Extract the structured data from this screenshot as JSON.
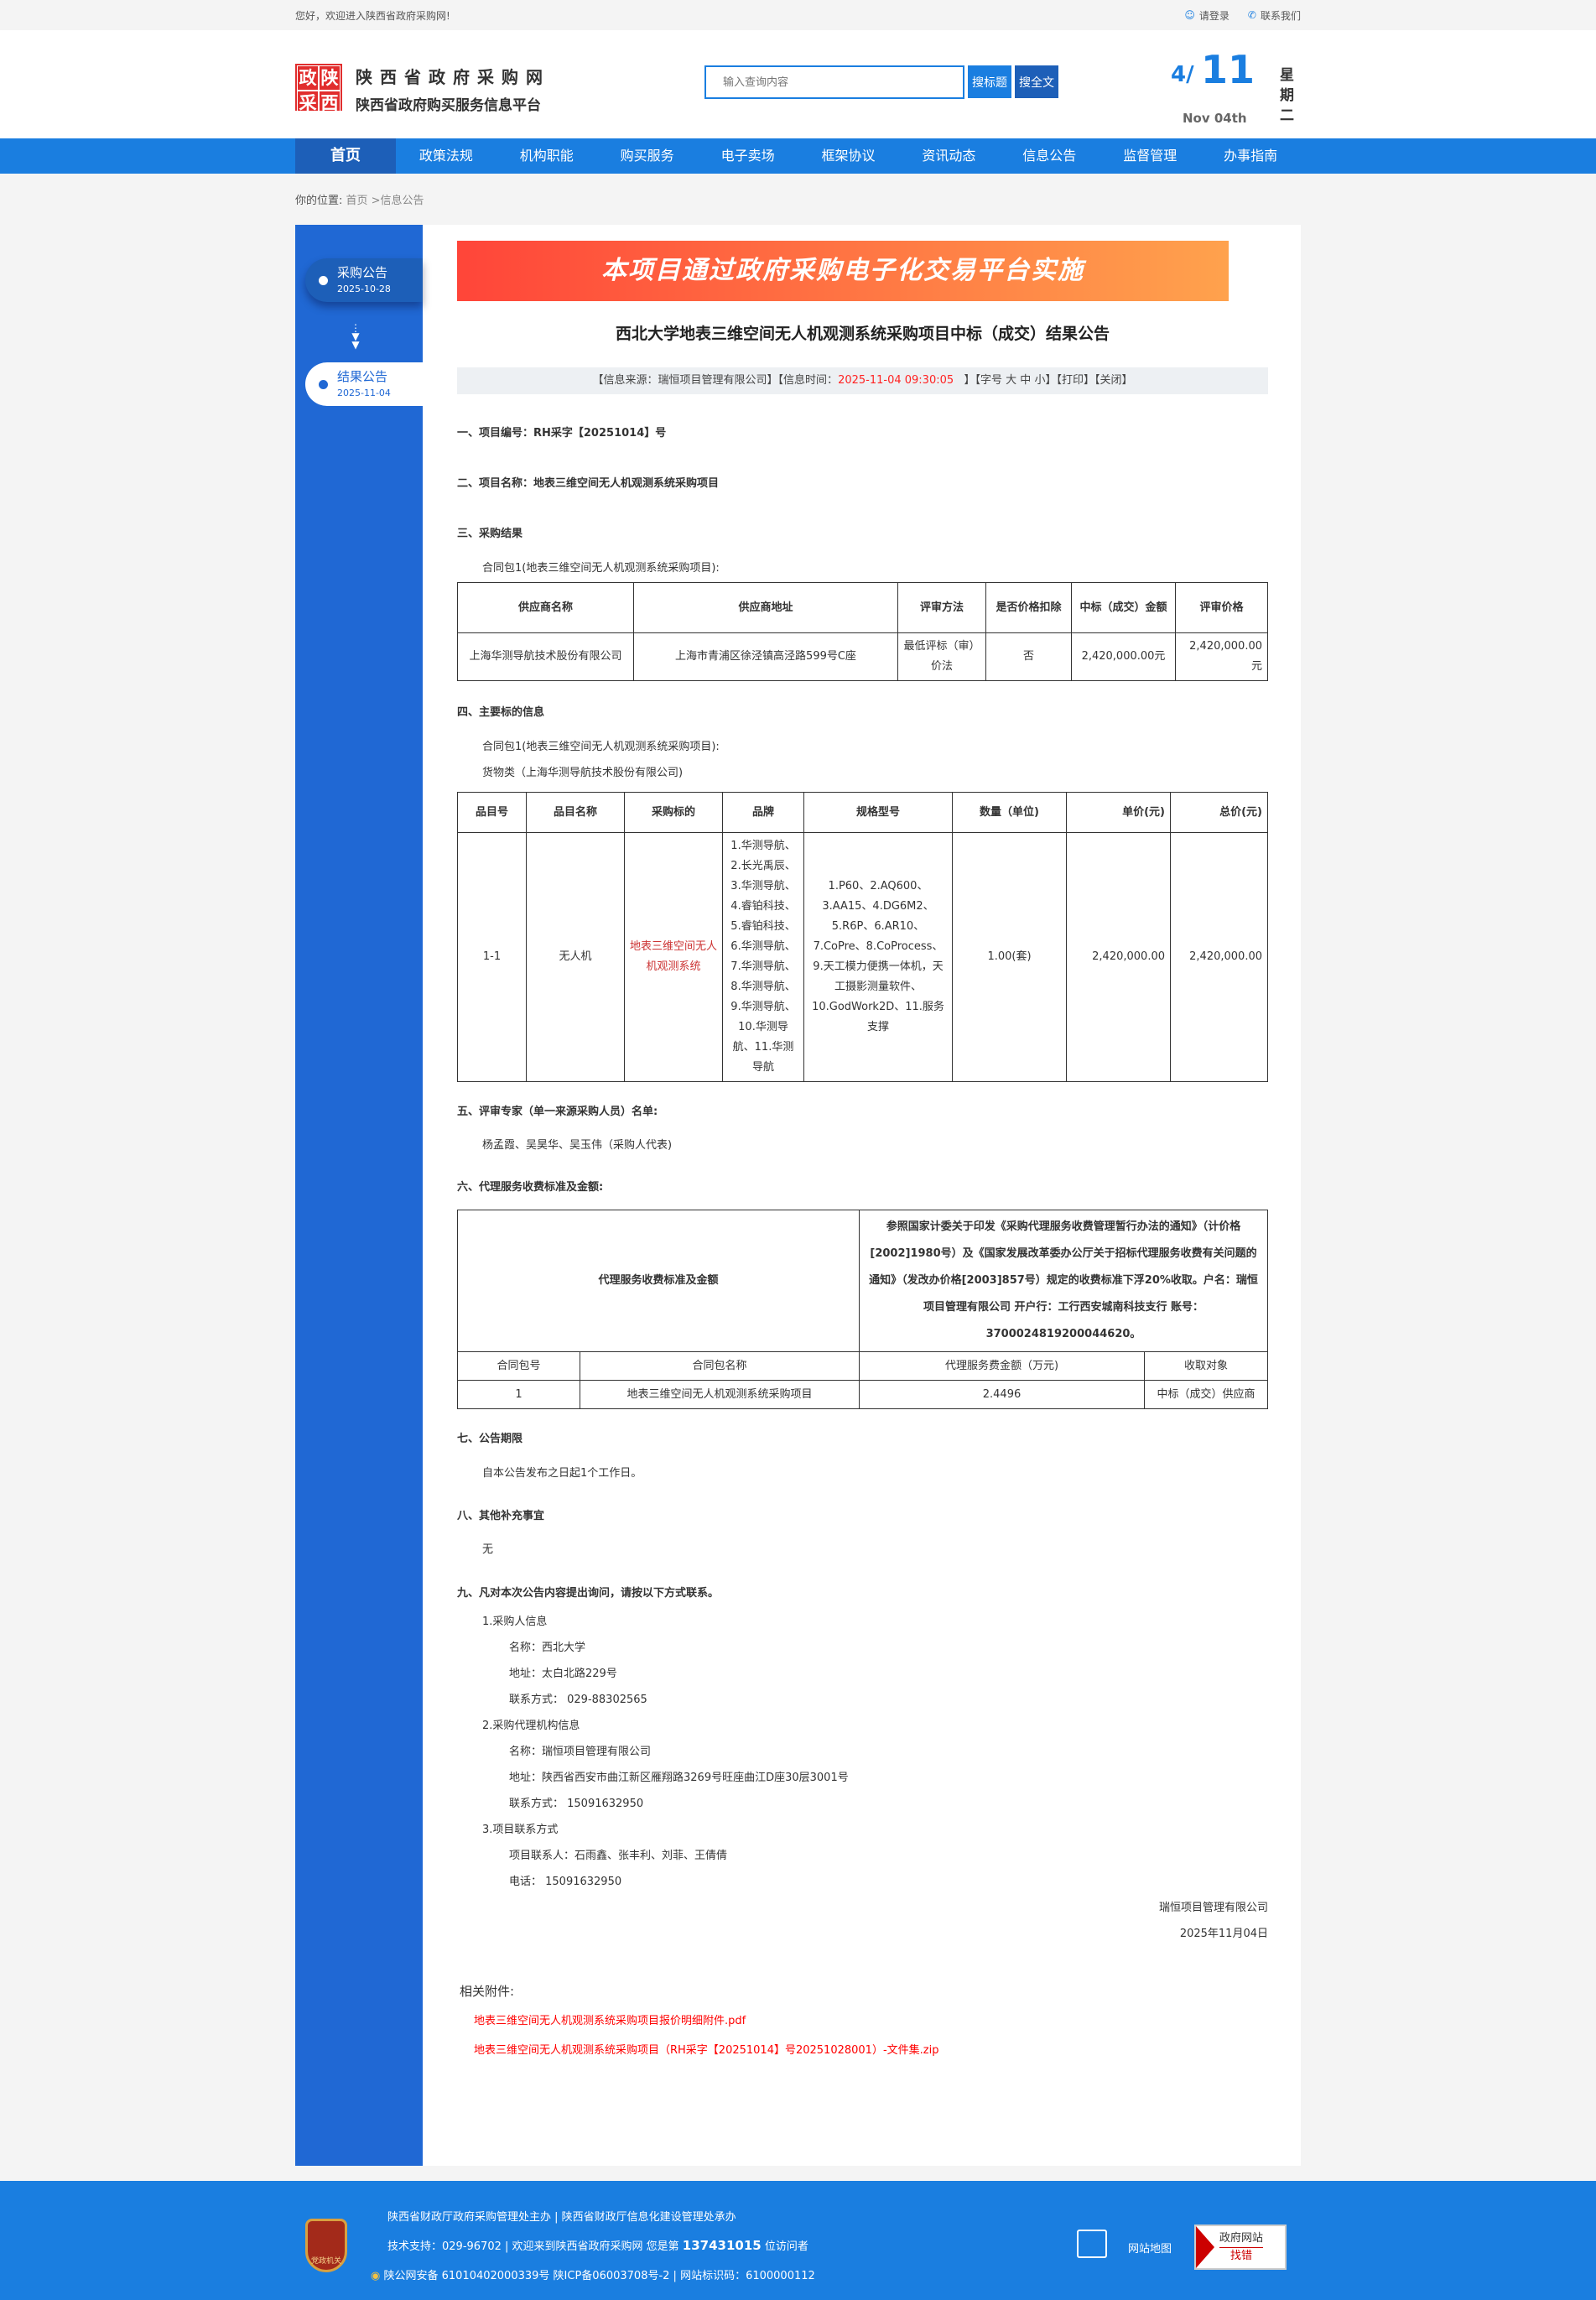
{
  "topbar": {
    "welcome": "您好，欢迎进入陕西省政府采购网!",
    "login": "请登录",
    "contact": "联系我们"
  },
  "header": {
    "logo_chars": [
      "政",
      "陕",
      "采",
      "西"
    ],
    "site_name": "陕西省政府采购网",
    "site_subtitle": "陕西省政府购买服务信息平台",
    "search": {
      "placeholder": "输入查询内容",
      "btn_title": "搜标题",
      "btn_full": "搜全文"
    },
    "date": {
      "month": "4/",
      "day": "11",
      "en": "Nov 04th",
      "weekday": "星期二"
    }
  },
  "nav": {
    "items": [
      "首页",
      "政策法规",
      "机构职能",
      "购买服务",
      "电子卖场",
      "框架协议",
      "资讯动态",
      "信息公告",
      "监督管理",
      "办事指南"
    ],
    "active": 0
  },
  "breadcrumb": {
    "label": "你的位置:",
    "path": "首页 >信息公告"
  },
  "sidebar": {
    "items": [
      {
        "label": "采购公告",
        "date": "2025-10-28"
      },
      {
        "label": "结果公告",
        "date": "2025-11-04"
      }
    ]
  },
  "article": {
    "banner": "本项目通过政府采购电子化交易平台实施",
    "title": "西北大学地表三维空间无人机观测系统采购项目中标（成交）结果公告",
    "info": {
      "source": "【信息来源：瑞恒项目管理有限公司】【信息时间：",
      "time": "2025-11-04 09:30:05",
      "rest": "】【字号 大 中 小】【打印】【关闭】"
    },
    "s1": "一、项目编号：RH采字【20251014】号",
    "s2": "二、项目名称：地表三维空间无人机观测系统采购项目",
    "s3": "三、采购结果",
    "s3_pkg": "合同包1(地表三维空间无人机观测系统采购项目):",
    "t1": {
      "headers": [
        "供应商名称",
        "供应商地址",
        "评审方法",
        "是否价格扣除",
        "中标（成交）金额",
        "评审价格"
      ],
      "row": [
        "上海华测导航技术股份有限公司",
        "上海市青浦区徐泾镇高泾路599号C座",
        "最低评标（审）价法",
        "否",
        "2,420,000.00元",
        "2,420,000.00元"
      ]
    },
    "s4": "四、主要标的信息",
    "s4_pkg": "合同包1(地表三维空间无人机观测系统采购项目):",
    "s4_type": "货物类（上海华测导航技术股份有限公司)",
    "t2": {
      "headers": [
        "品目号",
        "品目名称",
        "采购标的",
        "品牌",
        "规格型号",
        "数量（单位)",
        "单价(元)",
        "总价(元)"
      ],
      "row": [
        "1-1",
        "无人机",
        "地表三维空间无人机观测系统",
        "1.华测导航、2.长光禹辰、3.华测导航、4.睿铂科技、5.睿铂科技、6.华测导航、7.华测导航、8.华测导航、9.华测导航、10.华测导航、11.华测导航",
        "1.P60、2.AQ600、3.AA15、4.DG6M2、5.R6P、6.AR10、7.CoPre、8.CoProcess、9.天工模力便携一体机，天工摄影测量软件、10.GodWork2D、11.服务支撑",
        "1.00(套)",
        "2,420,000.00",
        "2,420,000.00"
      ]
    },
    "s5": "五、评审专家（单一来源采购人员）名单:",
    "s5_names": "杨孟霞、吴昊华、吴玉伟（采购人代表)",
    "s6": "六、代理服务收费标准及金额:",
    "t3": {
      "label": "代理服务收费标准及金额",
      "desc": "参照国家计委关于印发《采购代理服务收费管理暂行办法的通知》（计价格[2002]1980号）及《国家发展改革委办公厅关于招标代理服务收费有关问题的通知》（发改办价格[2003]857号）规定的收费标准下浮20%收取。户名：瑞恒项目管理有限公司 开户行：工行西安城南科技支行 账号：3700024819200044620。",
      "headers": [
        "合同包号",
        "合同包名称",
        "代理服务费金额（万元)",
        "收取对象"
      ],
      "row": [
        "1",
        "地表三维空间无人机观测系统采购项目",
        "2.4496",
        "中标（成交）供应商"
      ]
    },
    "s7": "七、公告期限",
    "s7_text": "自本公告发布之日起1个工作日。",
    "s8": "八、其他补充事宜",
    "s8_text": "无",
    "s9": "九、凡对本次公告内容提出询问，请按以下方式联系。",
    "c1": {
      "title": "1.采购人信息",
      "name": "名称：西北大学",
      "addr": "地址：太白北路229号",
      "tel": "联系方式： 029-88302565"
    },
    "c2": {
      "title": "2.采购代理机构信息",
      "name": "名称：瑞恒项目管理有限公司",
      "addr": "地址：陕西省西安市曲江新区雁翔路3269号旺座曲江D座30层3001号",
      "tel": "联系方式： 15091632950"
    },
    "c3": {
      "title": "3.项目联系方式",
      "people": "项目联系人：石雨鑫、张丰利、刘菲、王倩倩",
      "tel": "电话： 15091632950"
    },
    "sign_org": "瑞恒项目管理有限公司",
    "sign_date": "2025年11月04日",
    "attach_label": "相关附件:",
    "attachments": [
      "地表三维空间无人机观测系统采购项目报价明细附件.pdf",
      "地表三维空间无人机观测系统采购项目（RH采字【20251014】号20251028001）-文件集.zip"
    ]
  },
  "footer": {
    "badge": "党政机关",
    "line1": "陕西省财政厅政府采购管理处主办 | 陕西省财政厅信息化建设管理处承办",
    "line2_a": "技术支持：029-96702 | 欢迎来到陕西省政府采购网 您是第 ",
    "visitors": "137431015",
    "line2_b": " 位访问者",
    "line3": "陕公网安备 61010402000339号   陕ICP备06003708号-2  |  网站标识码：6100000112",
    "sitemap": "网站地图",
    "err_1": "政府网站",
    "err_2": "找错"
  },
  "colors": {
    "primary": "#1a7ee0",
    "dark": "#1d5fb8",
    "sidebar": "#2068d4",
    "accent_red": "#ff2222"
  }
}
